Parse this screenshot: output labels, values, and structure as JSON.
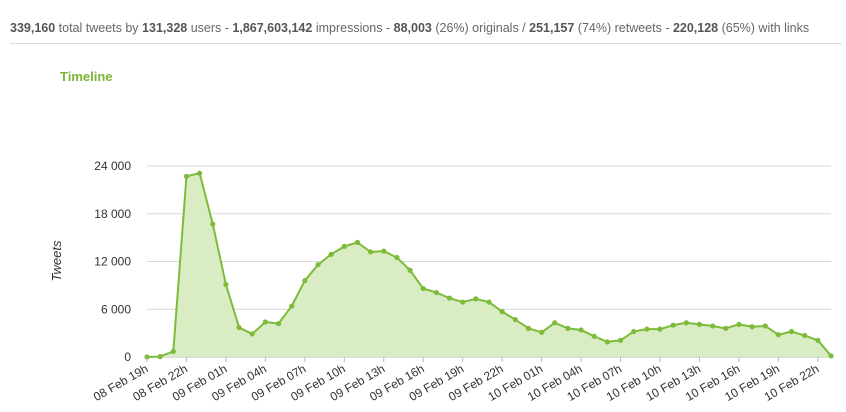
{
  "stats": {
    "total_tweets": "339,160",
    "t1": " total tweets by ",
    "users": "131,328",
    "t2": " users - ",
    "impressions": "1,867,603,142",
    "t3": " impressions - ",
    "originals": "88,003",
    "t4": " (26%) originals / ",
    "retweets": "251,157",
    "t5": " (74%) retweets - ",
    "links": "220,128",
    "t6": " (65%) with links"
  },
  "panel_title": "Timeline",
  "colors": {
    "line": "#7dbb3a",
    "fill": "#d9ecc3",
    "grid": "#d8d8d8"
  },
  "chart_data": {
    "type": "area",
    "title": "",
    "ylabel": "Tweets",
    "xlabel": "",
    "ylim": [
      0,
      24000
    ],
    "yticks": [
      0,
      6000,
      12000,
      18000,
      24000
    ],
    "ytick_labels": [
      "0",
      "6 000",
      "12 000",
      "18 000",
      "24 000"
    ],
    "xtick_labels": [
      "08 Feb 19h",
      "08 Feb 22h",
      "09 Feb 01h",
      "09 Feb 04h",
      "09 Feb 07h",
      "09 Feb 10h",
      "09 Feb 13h",
      "09 Feb 16h",
      "09 Feb 19h",
      "09 Feb 22h",
      "10 Feb 01h",
      "10 Feb 04h",
      "10 Feb 07h",
      "10 Feb 10h",
      "10 Feb 13h",
      "10 Feb 16h",
      "10 Feb 19h",
      "10 Feb 22h"
    ],
    "xtick_every": 3,
    "grid": true,
    "legend": "none",
    "series": [
      {
        "values": [
          0,
          50,
          700,
          22700,
          23100,
          16700,
          9100,
          3700,
          2900,
          4400,
          4200,
          6400,
          9600,
          11600,
          12900,
          13900,
          14400,
          13200,
          13300,
          12500,
          10900,
          8600,
          8100,
          7400,
          6900,
          7300,
          6900,
          5700,
          4700,
          3600,
          3100,
          4300,
          3600,
          3400,
          2600,
          1900,
          2100,
          3200,
          3500,
          3500,
          4000,
          4300,
          4100,
          3900,
          3600,
          4100,
          3800,
          3900,
          2800,
          3200,
          2700,
          2100,
          150
        ]
      }
    ]
  }
}
